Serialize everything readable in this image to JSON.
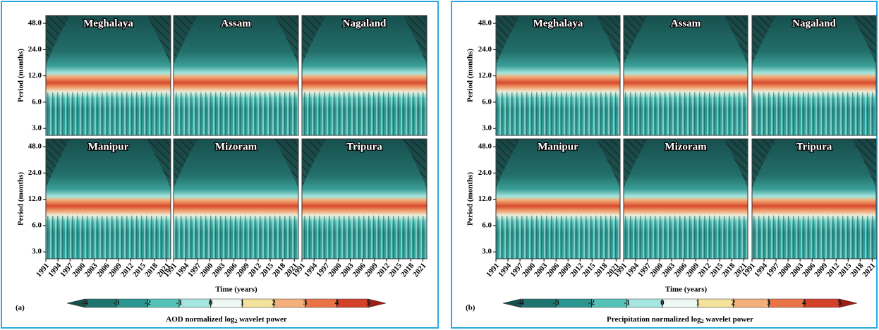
{
  "panels": [
    {
      "label": "(a)",
      "y_axis_label": "Period (months)",
      "x_axis_label": "Time (years)",
      "subplots": [
        "Meghalaya",
        "Assam",
        "Nagaland",
        "Manipur",
        "Mizoram",
        "Tripura"
      ],
      "log_y": true,
      "ylim": [
        2.5,
        59
      ],
      "yticks": [
        {
          "value": 48,
          "label": "48.0"
        },
        {
          "value": 24,
          "label": "24.0"
        },
        {
          "value": 12,
          "label": "12.0"
        },
        {
          "value": 6,
          "label": "6.0"
        },
        {
          "value": 3,
          "label": "3.0"
        }
      ],
      "xlim": [
        1991,
        2022
      ],
      "xticks": [
        1991,
        1994,
        1997,
        2000,
        2003,
        2006,
        2009,
        2012,
        2015,
        2018,
        2021
      ],
      "colorbar": {
        "ticks": [
          -4,
          -3,
          -2,
          -1,
          0,
          1,
          2,
          3,
          4,
          5
        ],
        "colors": [
          "#174f4d",
          "#1f7470",
          "#2b9690",
          "#55c2b9",
          "#a5e6e0",
          "#eef8f3",
          "#f2e29a",
          "#f3b07a",
          "#ea7448",
          "#d3412a",
          "#9d1d14"
        ],
        "label": [
          "AOD normalized log",
          "2",
          " wavelet power"
        ]
      }
    },
    {
      "label": "(b)",
      "y_axis_label": "Period (months)",
      "x_axis_label": "Time (years)",
      "subplots": [
        "Meghalaya",
        "Assam",
        "Nagaland",
        "Manipur",
        "Mizoram",
        "Tripura"
      ],
      "log_y": true,
      "ylim": [
        2.5,
        59
      ],
      "yticks": [
        {
          "value": 48,
          "label": "48.0"
        },
        {
          "value": 24,
          "label": "24.0"
        },
        {
          "value": 12,
          "label": "12.0"
        },
        {
          "value": 6,
          "label": "6.0"
        },
        {
          "value": 3,
          "label": "3.0"
        }
      ],
      "xlim": [
        1991,
        2022
      ],
      "xticks": [
        1991,
        1994,
        1997,
        2000,
        2003,
        2006,
        2009,
        2012,
        2015,
        2018,
        2021
      ],
      "colorbar": {
        "ticks": [
          -4,
          -3,
          -2,
          -1,
          0,
          1,
          2,
          3,
          4,
          5
        ],
        "colors": [
          "#174f4d",
          "#1f7470",
          "#2b9690",
          "#55c2b9",
          "#a5e6e0",
          "#eef8f3",
          "#f2e29a",
          "#f3b07a",
          "#ea7448",
          "#d3412a",
          "#9d1d14"
        ],
        "label": [
          "Precipitation normalized log",
          "2",
          " wavelet power"
        ]
      }
    }
  ]
}
